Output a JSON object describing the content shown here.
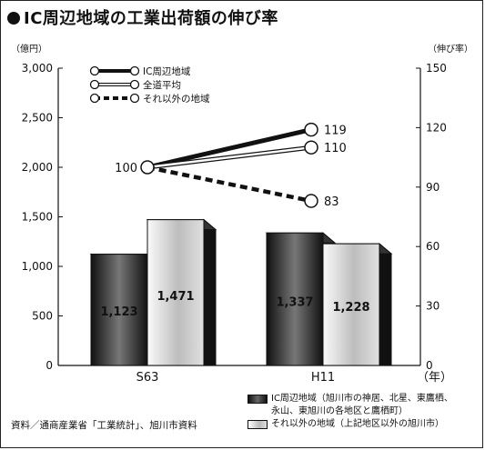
{
  "header": {
    "title": "IC周辺地域の工業出荷額の伸び率"
  },
  "source": "資料／通商産業省「工業統計」、旭川市資料",
  "footer_legend": {
    "ic_region": "IC周辺地域（旭川市の神居、北星、東鷹栖、\n永山、東旭川の各地区と鷹栖町）",
    "other_region": "それ以外の地域（上記地区以外の旭川市）"
  },
  "chart_data": {
    "type": "bar",
    "categories": [
      "S63",
      "H11"
    ],
    "xlabel": "（年）",
    "ylabel_left": "（億円）",
    "ylabel_right": "（伸び率）",
    "ylim_left": [
      0,
      3000
    ],
    "ylim_right": [
      0,
      150
    ],
    "yticks_left": [
      "0",
      "500",
      "1,000",
      "1,500",
      "2,000",
      "2,500",
      "3,000"
    ],
    "yticks_right": [
      "0",
      "30",
      "60",
      "90",
      "120",
      "150"
    ],
    "bar_series": [
      {
        "values": [
          1123,
          1337
        ],
        "labels": [
          "1,123",
          "1,337"
        ],
        "style": "dark"
      },
      {
        "values": [
          1471,
          1228
        ],
        "labels": [
          "1,471",
          "1,228"
        ],
        "style": "light"
      }
    ],
    "line_series": [
      {
        "name": "IC周辺地域",
        "values": [
          100,
          119
        ],
        "style": "thick-solid"
      },
      {
        "name": "全道平均",
        "values": [
          100,
          110
        ],
        "style": "double"
      },
      {
        "name": "それ以外の地域",
        "values": [
          100,
          83
        ],
        "style": "dashed"
      }
    ],
    "start_label": "100",
    "end_labels": [
      "119",
      "110",
      "83"
    ],
    "legend_position": "top-left",
    "grid": false
  }
}
